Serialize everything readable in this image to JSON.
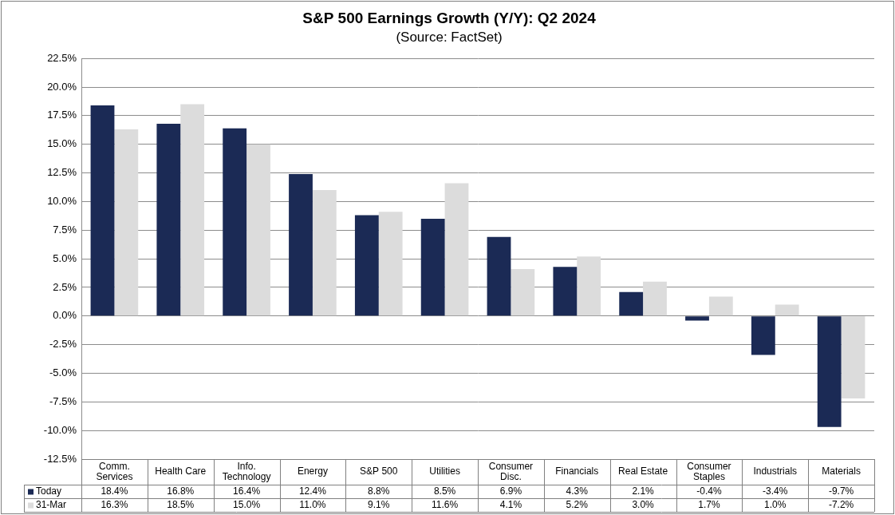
{
  "chart_data": {
    "type": "bar",
    "title": "S&P 500 Earnings Growth (Y/Y): Q2 2024",
    "subtitle": "(Source: FactSet)",
    "categories": [
      "Comm. Services",
      "Health Care",
      "Info. Technology",
      "Energy",
      "S&P 500",
      "Utilities",
      "Consumer Disc.",
      "Financials",
      "Real Estate",
      "Consumer Staples",
      "Industrials",
      "Materials"
    ],
    "series": [
      {
        "name": "Today",
        "color": "#1b2a55",
        "values": [
          18.4,
          16.8,
          16.4,
          12.4,
          8.8,
          8.5,
          6.9,
          4.3,
          2.1,
          -0.4,
          -3.4,
          -9.7
        ],
        "value_labels": [
          "18.4%",
          "16.8%",
          "16.4%",
          "12.4%",
          "8.8%",
          "8.5%",
          "6.9%",
          "4.3%",
          "2.1%",
          "-0.4%",
          "-3.4%",
          "-9.7%"
        ]
      },
      {
        "name": "31-Mar",
        "color": "#dcdcdc",
        "values": [
          16.3,
          18.5,
          15.0,
          11.0,
          9.1,
          11.6,
          4.1,
          5.2,
          3.0,
          1.7,
          1.0,
          -7.2
        ],
        "value_labels": [
          "16.3%",
          "18.5%",
          "15.0%",
          "11.0%",
          "9.1%",
          "11.6%",
          "4.1%",
          "5.2%",
          "3.0%",
          "1.7%",
          "1.0%",
          "-7.2%"
        ]
      }
    ],
    "ylim": [
      -12.5,
      22.5
    ],
    "yticks": [
      {
        "value": -12.5,
        "label": "-12.5%"
      },
      {
        "value": -10,
        "label": "-10.0%"
      },
      {
        "value": -7.5,
        "label": "-7.5%"
      },
      {
        "value": -5,
        "label": "-5.0%"
      },
      {
        "value": -2.5,
        "label": "-2.5%"
      },
      {
        "value": 0,
        "label": "0.0%"
      },
      {
        "value": 2.5,
        "label": "2.5%"
      },
      {
        "value": 5,
        "label": "5.0%"
      },
      {
        "value": 7.5,
        "label": "7.5%"
      },
      {
        "value": 10,
        "label": "10.0%"
      },
      {
        "value": 12.5,
        "label": "12.5%"
      },
      {
        "value": 15,
        "label": "15.0%"
      },
      {
        "value": 17.5,
        "label": "17.5%"
      },
      {
        "value": 20,
        "label": "20.0%"
      },
      {
        "value": 22.5,
        "label": "22.5%"
      }
    ],
    "grid": true,
    "tick_labels": "y"
  }
}
